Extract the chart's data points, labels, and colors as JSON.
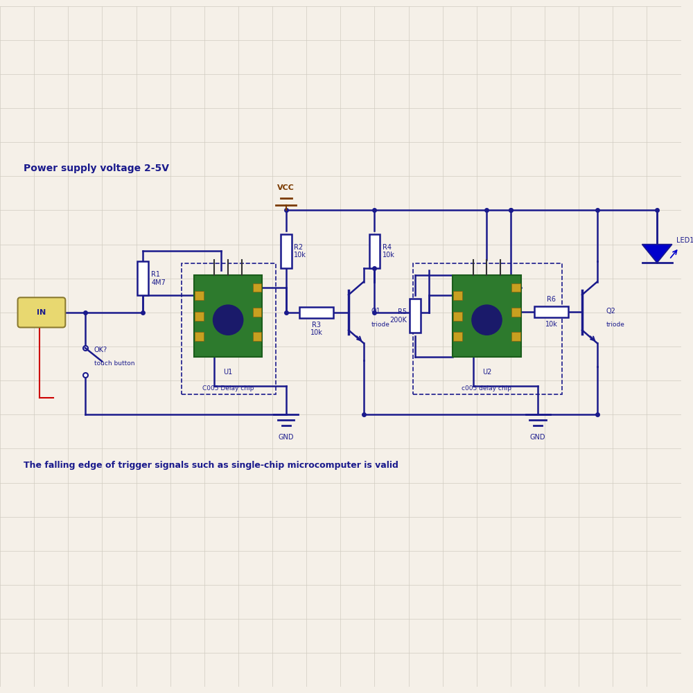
{
  "bg_color": "#f5f0e8",
  "grid_color": "#d0ccc0",
  "line_color": "#1a1a8c",
  "red_color": "#cc0000",
  "brown_color": "#7a3a00",
  "green_pcb": "#2d7a2d",
  "green_pcb_edge": "#1a5c1a",
  "dark_pot": "#1a1a6a",
  "pad_color": "#c8a020",
  "pad_edge": "#8a6010",
  "pin_color": "#333333",
  "in_fill": "#e8d870",
  "in_edge": "#8a7a30",
  "led_color": "#0000cc",
  "title_text": "Power supply voltage 2-5V",
  "bottom_text": "The falling edge of trigger signals such as single-chip microcomputer is valid",
  "vcc_text": "VCC",
  "gnd_text": "GND"
}
